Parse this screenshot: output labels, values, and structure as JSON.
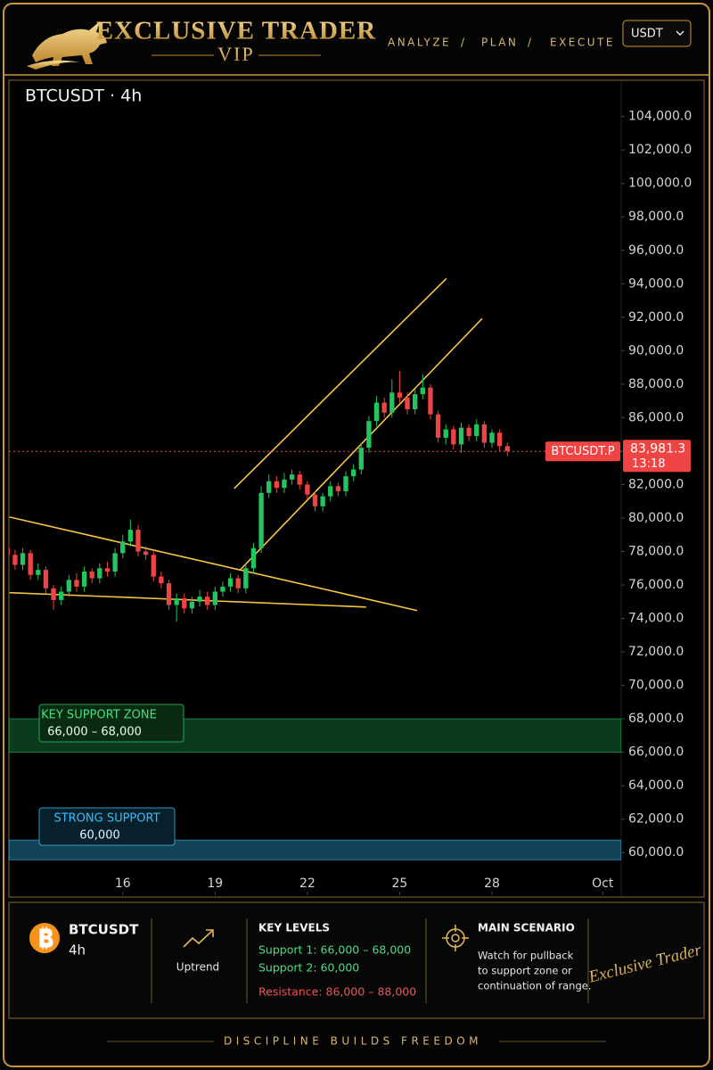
{
  "header": {
    "brand": "EXCLUSIVE TRADER",
    "sub_brand": "VIP",
    "nav": [
      "ANALYZE",
      "PLAN",
      "EXECUTE"
    ],
    "currency": "USDT"
  },
  "chart_data": {
    "type": "candlestick",
    "title": "BTCUSDT · 4h",
    "x": [
      12.25,
      12.5,
      12.75,
      13,
      13.25,
      13.5,
      13.75,
      14,
      14.25,
      14.5,
      14.75,
      15,
      15.25,
      15.5,
      15.75,
      16,
      16.25,
      16.5,
      16.75,
      17,
      17.25,
      17.5,
      17.75,
      18,
      18.25,
      18.5,
      18.75,
      19,
      19.25,
      19.5,
      19.75,
      20,
      20.25,
      20.5,
      20.75,
      21,
      21.25,
      21.5,
      21.75,
      22,
      22.25,
      22.5,
      22.75,
      23,
      23.25,
      23.5,
      23.75,
      24,
      24.25,
      24.5,
      24.75,
      25,
      25.25,
      25.5,
      25.75,
      26,
      26.25,
      26.5,
      26.75,
      27,
      27.25,
      27.5,
      27.75,
      28,
      28.25,
      28.5
    ],
    "open": [
      78200,
      77800,
      77200,
      77900,
      76600,
      76900,
      75800,
      75100,
      75600,
      76300,
      75900,
      76800,
      76400,
      77000,
      76800,
      77900,
      78600,
      79300,
      78000,
      77800,
      76500,
      76100,
      74800,
      75200,
      74600,
      75000,
      75300,
      74800,
      75600,
      75900,
      76400,
      75800,
      77000,
      78200,
      81500,
      82200,
      81800,
      82300,
      82600,
      82000,
      81400,
      80700,
      81300,
      81900,
      81600,
      82500,
      82900,
      84200,
      85800,
      86900,
      86300,
      87500,
      87200,
      86500,
      87400,
      87800,
      86200,
      84800,
      85300,
      84400,
      85400,
      84900,
      85600,
      84500,
      85100,
      84300
    ],
    "high": [
      78600,
      78100,
      78200,
      78100,
      77300,
      77100,
      76000,
      75900,
      76600,
      76700,
      77100,
      77000,
      77300,
      77400,
      78200,
      79000,
      79900,
      79600,
      78300,
      78000,
      76800,
      76300,
      75500,
      75500,
      75300,
      75700,
      75600,
      75900,
      76200,
      76700,
      76600,
      77300,
      78500,
      81900,
      82600,
      82500,
      82700,
      82900,
      82800,
      82200,
      81600,
      81500,
      82200,
      82100,
      82800,
      83200,
      84500,
      86100,
      87300,
      87200,
      88300,
      88800,
      87500,
      87700,
      88600,
      88000,
      86400,
      85600,
      85500,
      85700,
      85600,
      85900,
      85800,
      85300,
      85300,
      84500
    ],
    "low": [
      77400,
      76900,
      76900,
      76300,
      76300,
      75500,
      74500,
      74800,
      75300,
      75600,
      75600,
      76100,
      76100,
      76500,
      76500,
      77600,
      78300,
      77700,
      77500,
      76200,
      75800,
      74500,
      73800,
      74300,
      74300,
      74700,
      74500,
      74500,
      75300,
      75600,
      75500,
      75500,
      76700,
      77900,
      81200,
      81500,
      81500,
      82000,
      81700,
      81100,
      80400,
      80400,
      81000,
      81300,
      81300,
      82200,
      82600,
      83900,
      85500,
      86000,
      86000,
      86900,
      86200,
      86200,
      87100,
      85900,
      84500,
      84400,
      84100,
      83900,
      84600,
      84600,
      84200,
      84200,
      84000,
      83700
    ],
    "close": [
      77800,
      77200,
      77900,
      76600,
      76900,
      75800,
      75100,
      75600,
      76300,
      75900,
      76800,
      76400,
      77000,
      76800,
      77900,
      78600,
      79300,
      78000,
      77800,
      76500,
      76100,
      74800,
      75200,
      74600,
      75000,
      75300,
      74800,
      75600,
      75900,
      76400,
      75800,
      77000,
      78200,
      81500,
      82200,
      81800,
      82300,
      82600,
      82000,
      81400,
      80700,
      81300,
      81900,
      81600,
      82500,
      82900,
      84200,
      85800,
      86900,
      86300,
      87500,
      87200,
      86500,
      87400,
      87800,
      86200,
      84800,
      85300,
      84400,
      85400,
      84900,
      85600,
      84500,
      85100,
      84300,
      84000
    ],
    "up_color": "#22c55e",
    "down_color": "#ef4444",
    "xlim": [
      12.3,
      32.2
    ],
    "xticks": [
      16,
      19,
      22,
      25,
      28,
      {
        "value": 31.6,
        "label": "Oct"
      }
    ],
    "ylim": [
      59000,
      105900
    ],
    "yticks": [
      {
        "value": 60000,
        "label": "60,000.0"
      },
      {
        "value": 62000,
        "label": "62,000.0"
      },
      {
        "value": 64000,
        "label": "64,000.0"
      },
      {
        "value": 66000,
        "label": "66,000.0"
      },
      {
        "value": 68000,
        "label": "68,000.0"
      },
      {
        "value": 70000,
        "label": "70,000.0"
      },
      {
        "value": 72000,
        "label": "72,000.0"
      },
      {
        "value": 74000,
        "label": "74,000.0"
      },
      {
        "value": 76000,
        "label": "76,000.0"
      },
      {
        "value": 78000,
        "label": "78,000.0"
      },
      {
        "value": 80000,
        "label": "80,000.0"
      },
      {
        "value": 82000,
        "label": "82,000.0"
      },
      {
        "value": 84000,
        "label": "84,000.0"
      },
      {
        "value": 86000,
        "label": "86,000.0"
      },
      {
        "value": 88000,
        "label": "88,000.0"
      },
      {
        "value": 90000,
        "label": "90,000.0"
      },
      {
        "value": 92000,
        "label": "92,000.0"
      },
      {
        "value": 94000,
        "label": "94,000.0"
      },
      {
        "value": 96000,
        "label": "96,000.0"
      },
      {
        "value": 98000,
        "label": "98,000.0"
      },
      {
        "value": 100000,
        "label": "100,000.0"
      },
      {
        "value": 102000,
        "label": "102,000.0"
      },
      {
        "value": 104000,
        "label": "104,000.0"
      }
    ],
    "grid": false,
    "trendlines": [
      {
        "x": [
          19.62,
          26.52
        ],
        "y": [
          81760,
          94320
        ],
        "color": "#f5c542"
      },
      {
        "x": [
          19.8,
          27.68
        ],
        "y": [
          76870,
          91920
        ],
        "color": "#f5c542"
      },
      {
        "x": [
          12.32,
          25.57
        ],
        "y": [
          80060,
          74470
        ],
        "color": "#f5c542"
      },
      {
        "x": [
          12.32,
          23.91
        ],
        "y": [
          75540,
          74680
        ],
        "color": "#f5c542"
      }
    ],
    "zones": [
      {
        "label": "KEY SUPPORT ZONE",
        "range_label": "66,000 – 68,000",
        "range": [
          66000,
          68000
        ],
        "color": "#22c55e"
      },
      {
        "label": "STRONG SUPPORT",
        "value_label": "60,000",
        "value": 60000,
        "color": "#38bdf8"
      }
    ],
    "symbol_tag": "BTCUSDT.P",
    "last_price": 83981.3,
    "last_price_label": "83,981.3",
    "countdown": "13:18",
    "price_line_color": "#ef4444"
  },
  "info_panel": {
    "symbol": "BTCUSDT",
    "timeframe": "4h",
    "trend": "Uptrend",
    "key_levels": {
      "title": "KEY LEVELS",
      "support_1": "Support 1: 66,000 – 68,000",
      "support_2": "Support 2: 60,000",
      "resistance": "Resistance: 86,000 – 88,000"
    },
    "scenario": {
      "title": "MAIN SCENARIO",
      "lines": [
        "Watch for pullback",
        "to support zone or",
        "continuation of range."
      ]
    },
    "signature": "Exclusive Trader"
  },
  "footer": "DISCIPLINE BUILDS FREEDOM"
}
